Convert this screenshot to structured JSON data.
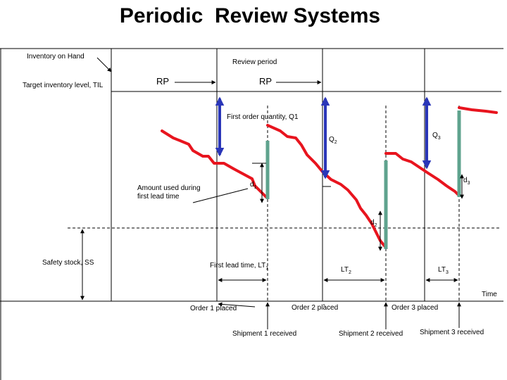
{
  "title": "Periodic  Review Systems",
  "labels": {
    "inventory_on_hand": "Inventory on Hand",
    "target_inventory": "Target inventory level, TIL",
    "review_period": "Review period",
    "rp1": "RP",
    "rp2": "RP",
    "first_order_qty": "First order quantity, Q1",
    "q2": "Q",
    "q2_sub": "2",
    "q3": "Q",
    "q3_sub": "3",
    "d1": "d",
    "d1_sub": "1",
    "d2": "d",
    "d2_sub": "2",
    "d3": "d",
    "d3_sub": "3",
    "amount_used": "Amount used during first lead time",
    "safety_stock": "Safety stock, SS",
    "first_lead_time": "First lead time, LT",
    "first_lead_time_sub": "1",
    "lt2": "LT",
    "lt2_sub": "2",
    "lt3": "LT",
    "lt3_sub": "3",
    "time": "Time",
    "order1": "Order 1 placed",
    "order2": "Order  2  placed",
    "order3": "Order  3  placed",
    "shipment1": "Shipment 1 received",
    "shipment2": "Shipment 2 received",
    "shipment3": "Shipment 3 received"
  },
  "colors": {
    "inventory_line": "#e8141e",
    "order_arrow": "#2a36b8",
    "receipt_bar": "#5fa38e",
    "axis": "#000000",
    "dashed_line": "#000000"
  }
}
